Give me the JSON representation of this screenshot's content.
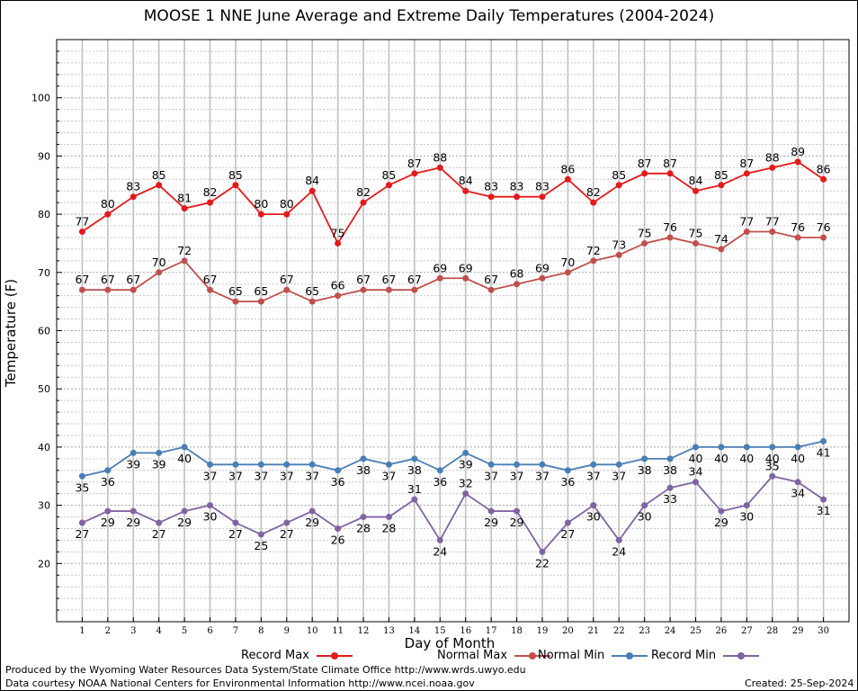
{
  "chart_data": {
    "type": "line",
    "title": "MOOSE 1 NNE June Average and Extreme Daily Temperatures (2004-2024)",
    "xlabel": "Day of Month",
    "ylabel": "Temperature (F)",
    "x": [
      1,
      2,
      3,
      4,
      5,
      6,
      7,
      8,
      9,
      10,
      11,
      12,
      13,
      14,
      15,
      16,
      17,
      18,
      19,
      20,
      21,
      22,
      23,
      24,
      25,
      26,
      27,
      28,
      29,
      30
    ],
    "xlim": [
      0,
      31
    ],
    "ylim": [
      10,
      110
    ],
    "yticks": [
      20,
      30,
      40,
      50,
      60,
      70,
      80,
      90,
      100
    ],
    "grid": true,
    "legend_position": "bottom",
    "series": [
      {
        "name": "Record Max",
        "color": "#e41a1c",
        "values": [
          77,
          80,
          83,
          85,
          81,
          82,
          85,
          80,
          80,
          84,
          75,
          82,
          85,
          87,
          88,
          84,
          83,
          83,
          83,
          86,
          82,
          85,
          87,
          87,
          84,
          85,
          87,
          88,
          89,
          86
        ]
      },
      {
        "name": "Normal Max",
        "color": "#c0504d",
        "values": [
          67,
          67,
          67,
          70,
          72,
          67,
          65,
          65,
          67,
          65,
          66,
          67,
          67,
          67,
          69,
          69,
          67,
          68,
          69,
          70,
          72,
          73,
          75,
          76,
          75,
          74,
          77,
          77,
          76,
          76
        ]
      },
      {
        "name": "Normal Min",
        "color": "#4a7fb5",
        "values": [
          35,
          36,
          39,
          39,
          40,
          37,
          37,
          37,
          37,
          37,
          36,
          38,
          37,
          38,
          36,
          39,
          37,
          37,
          37,
          36,
          37,
          37,
          38,
          38,
          40,
          40,
          40,
          40,
          40,
          41
        ]
      },
      {
        "name": "Record Min",
        "color": "#8064a2",
        "values": [
          27,
          29,
          29,
          27,
          29,
          30,
          27,
          25,
          27,
          29,
          26,
          28,
          28,
          31,
          24,
          32,
          29,
          29,
          22,
          27,
          30,
          24,
          30,
          33,
          34,
          29,
          30,
          35,
          34,
          31
        ]
      }
    ]
  },
  "footer": {
    "produced_by": "Produced by the Wyoming Water Resources Data System/State Climate Office http://www.wrds.uwyo.edu",
    "data_courtesy": "Data courtesy NOAA National Centers for Environmental Information http://www.ncei.noaa.gov",
    "created": "Created:  25-Sep-2024"
  }
}
